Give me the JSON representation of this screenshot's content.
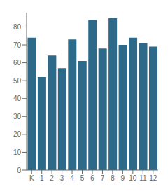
{
  "chart_data": {
    "type": "bar",
    "categories": [
      "K",
      "1",
      "2",
      "3",
      "4",
      "5",
      "6",
      "7",
      "8",
      "9",
      "10",
      "11",
      "12"
    ],
    "values": [
      74,
      52,
      64,
      57,
      73,
      61,
      84,
      68,
      85,
      70,
      74,
      71,
      69
    ],
    "color": "#2d6a8a",
    "ylim": [
      0,
      88
    ],
    "yticks": [
      0,
      10,
      20,
      30,
      40,
      50,
      60,
      70,
      80
    ],
    "grid": false
  }
}
